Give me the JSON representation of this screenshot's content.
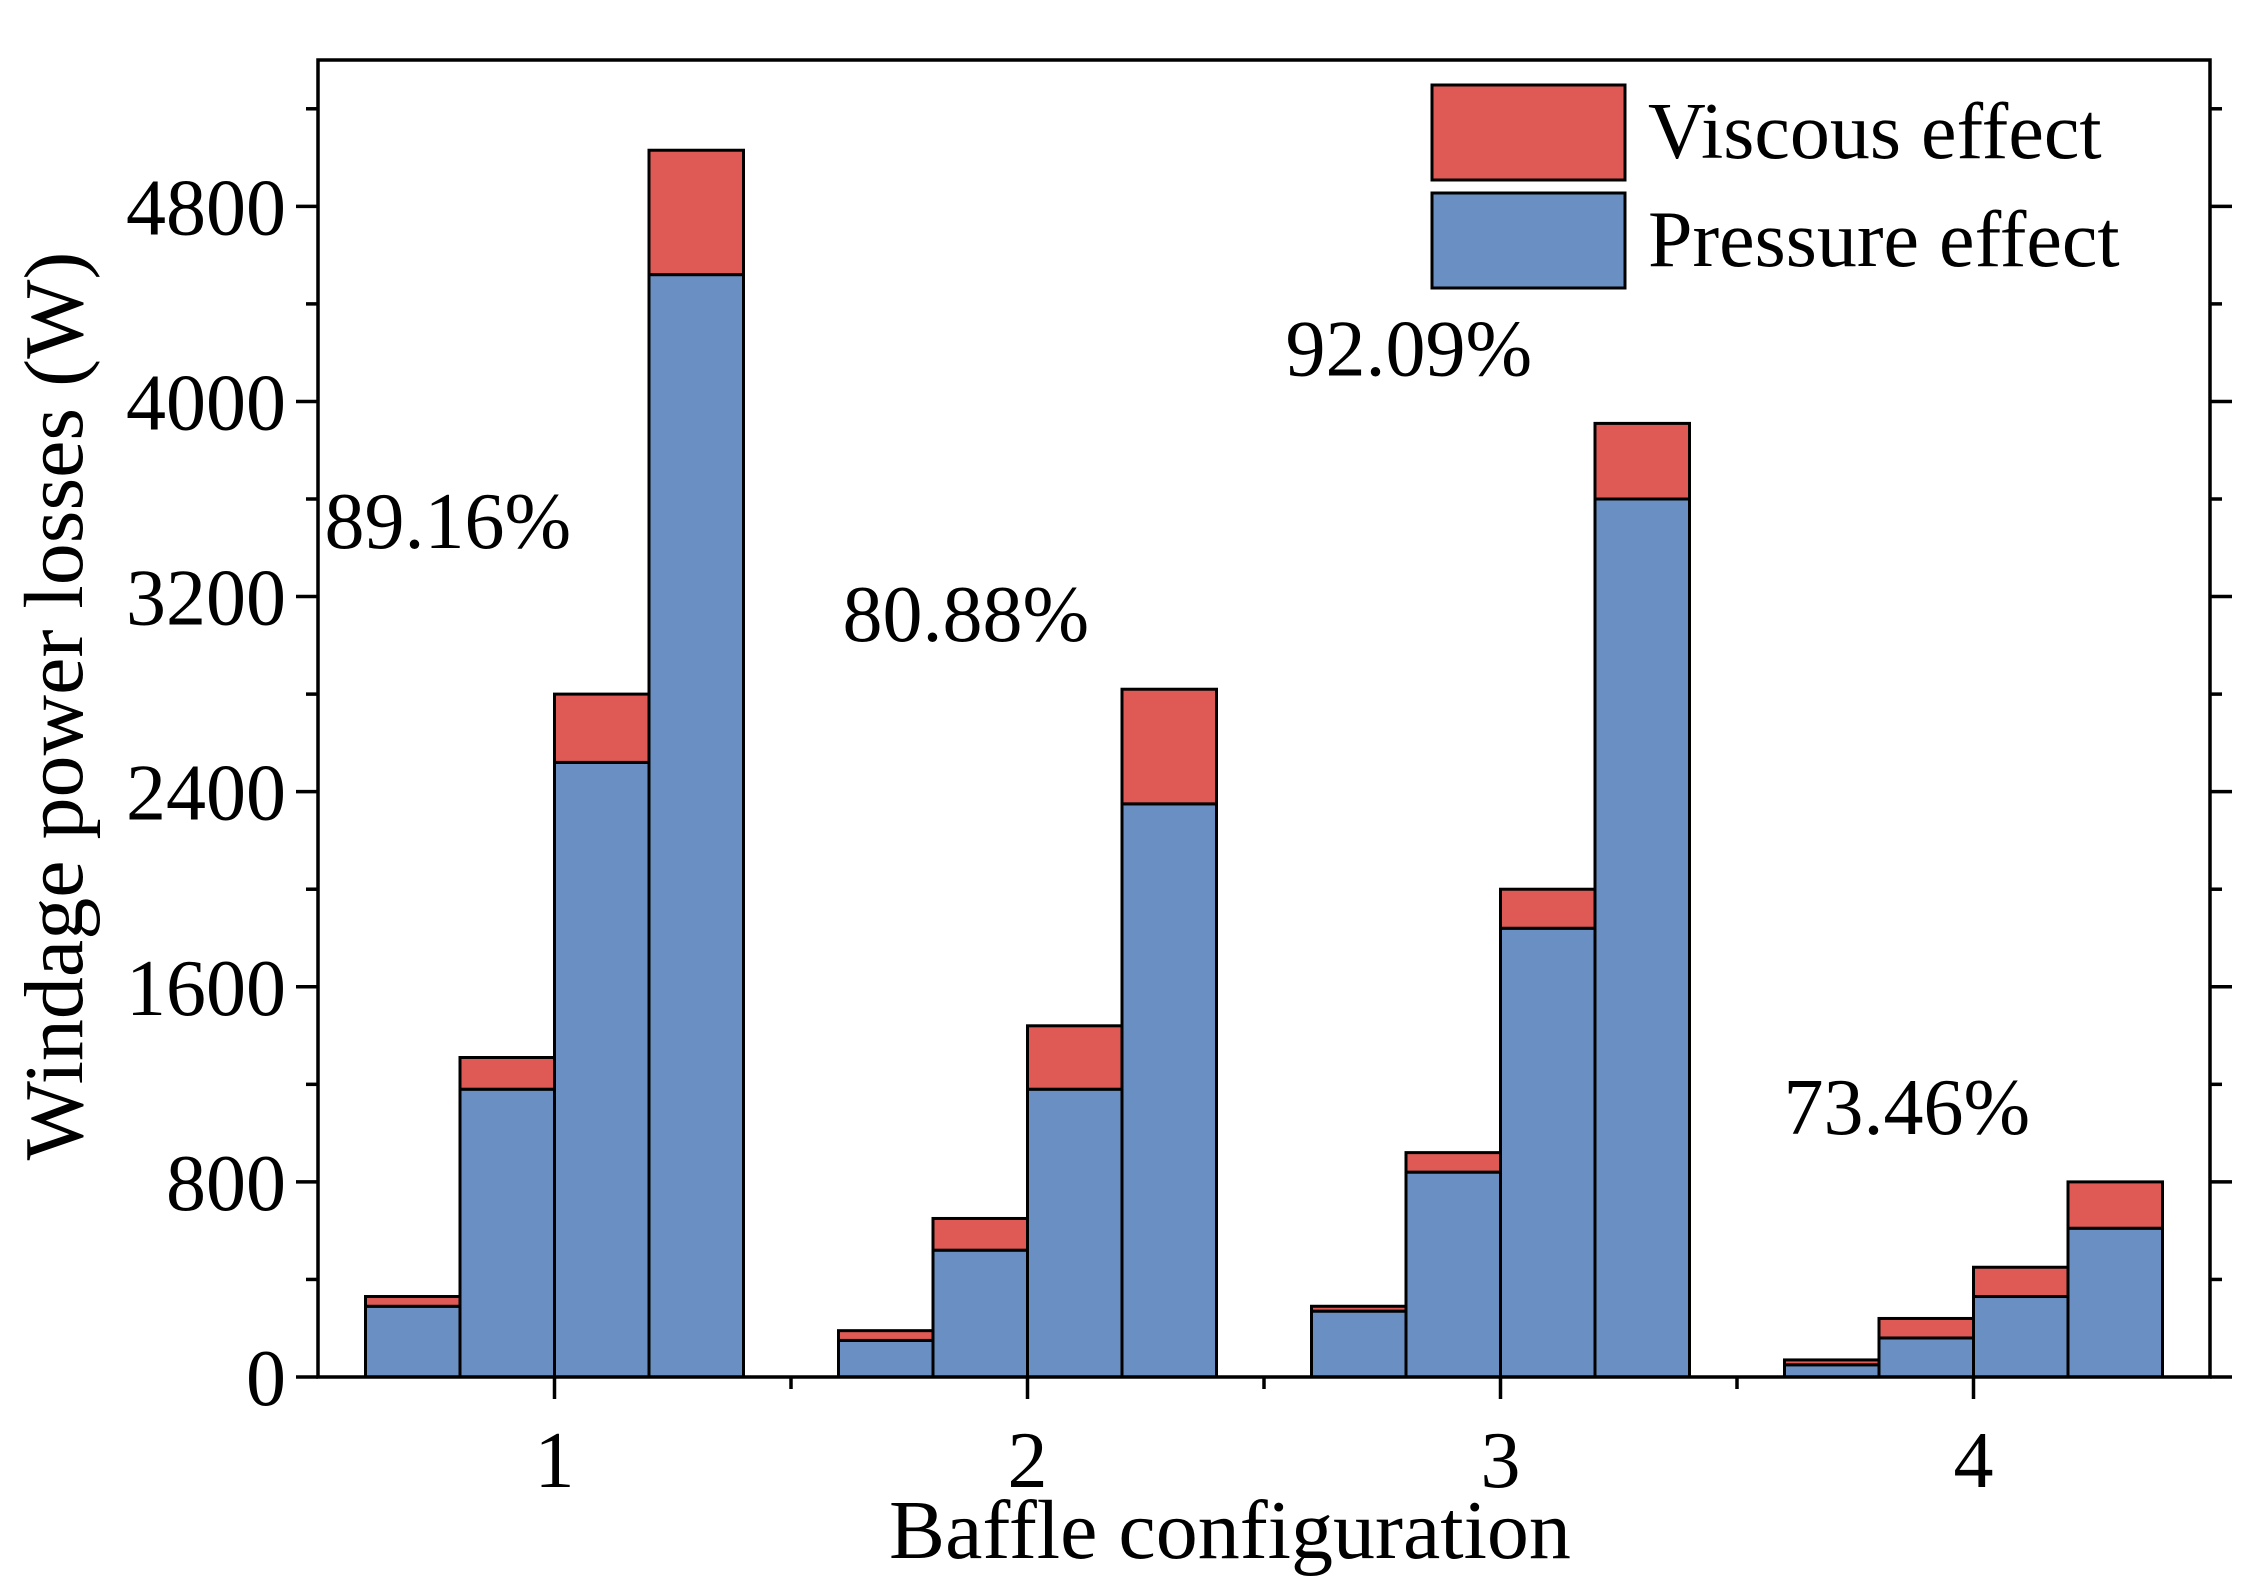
{
  "chart_data": {
    "type": "bar",
    "stacked": true,
    "xlabel": "Baffle configuration",
    "ylabel": "Windage power losses (W)",
    "ylim": [
      0,
      5400
    ],
    "yticks": [
      0,
      800,
      1600,
      2400,
      3200,
      4000,
      4800
    ],
    "categories": [
      "1",
      "2",
      "3",
      "4"
    ],
    "bars_per_group": 4,
    "series": [
      {
        "name": "Pressure effect",
        "color": "#6a8fc3",
        "values": [
          [
            290,
            1180,
            2520,
            4520
          ],
          [
            150,
            520,
            1180,
            2350
          ],
          [
            270,
            840,
            1840,
            3600
          ],
          [
            50,
            160,
            330,
            610
          ]
        ]
      },
      {
        "name": "Viscous effect",
        "color": "#e05a55",
        "values": [
          [
            40,
            130,
            280,
            510
          ],
          [
            40,
            130,
            260,
            470
          ],
          [
            20,
            80,
            160,
            310
          ],
          [
            20,
            80,
            120,
            190
          ]
        ]
      }
    ],
    "annotations": [
      {
        "text": "89.16%",
        "group": 0
      },
      {
        "text": "80.88%",
        "group": 1
      },
      {
        "text": "92.09%",
        "group": 2
      },
      {
        "text": "73.46%",
        "group": 3
      }
    ],
    "legend": {
      "position": "top-right",
      "order": [
        "Viscous effect",
        "Pressure effect"
      ]
    }
  }
}
